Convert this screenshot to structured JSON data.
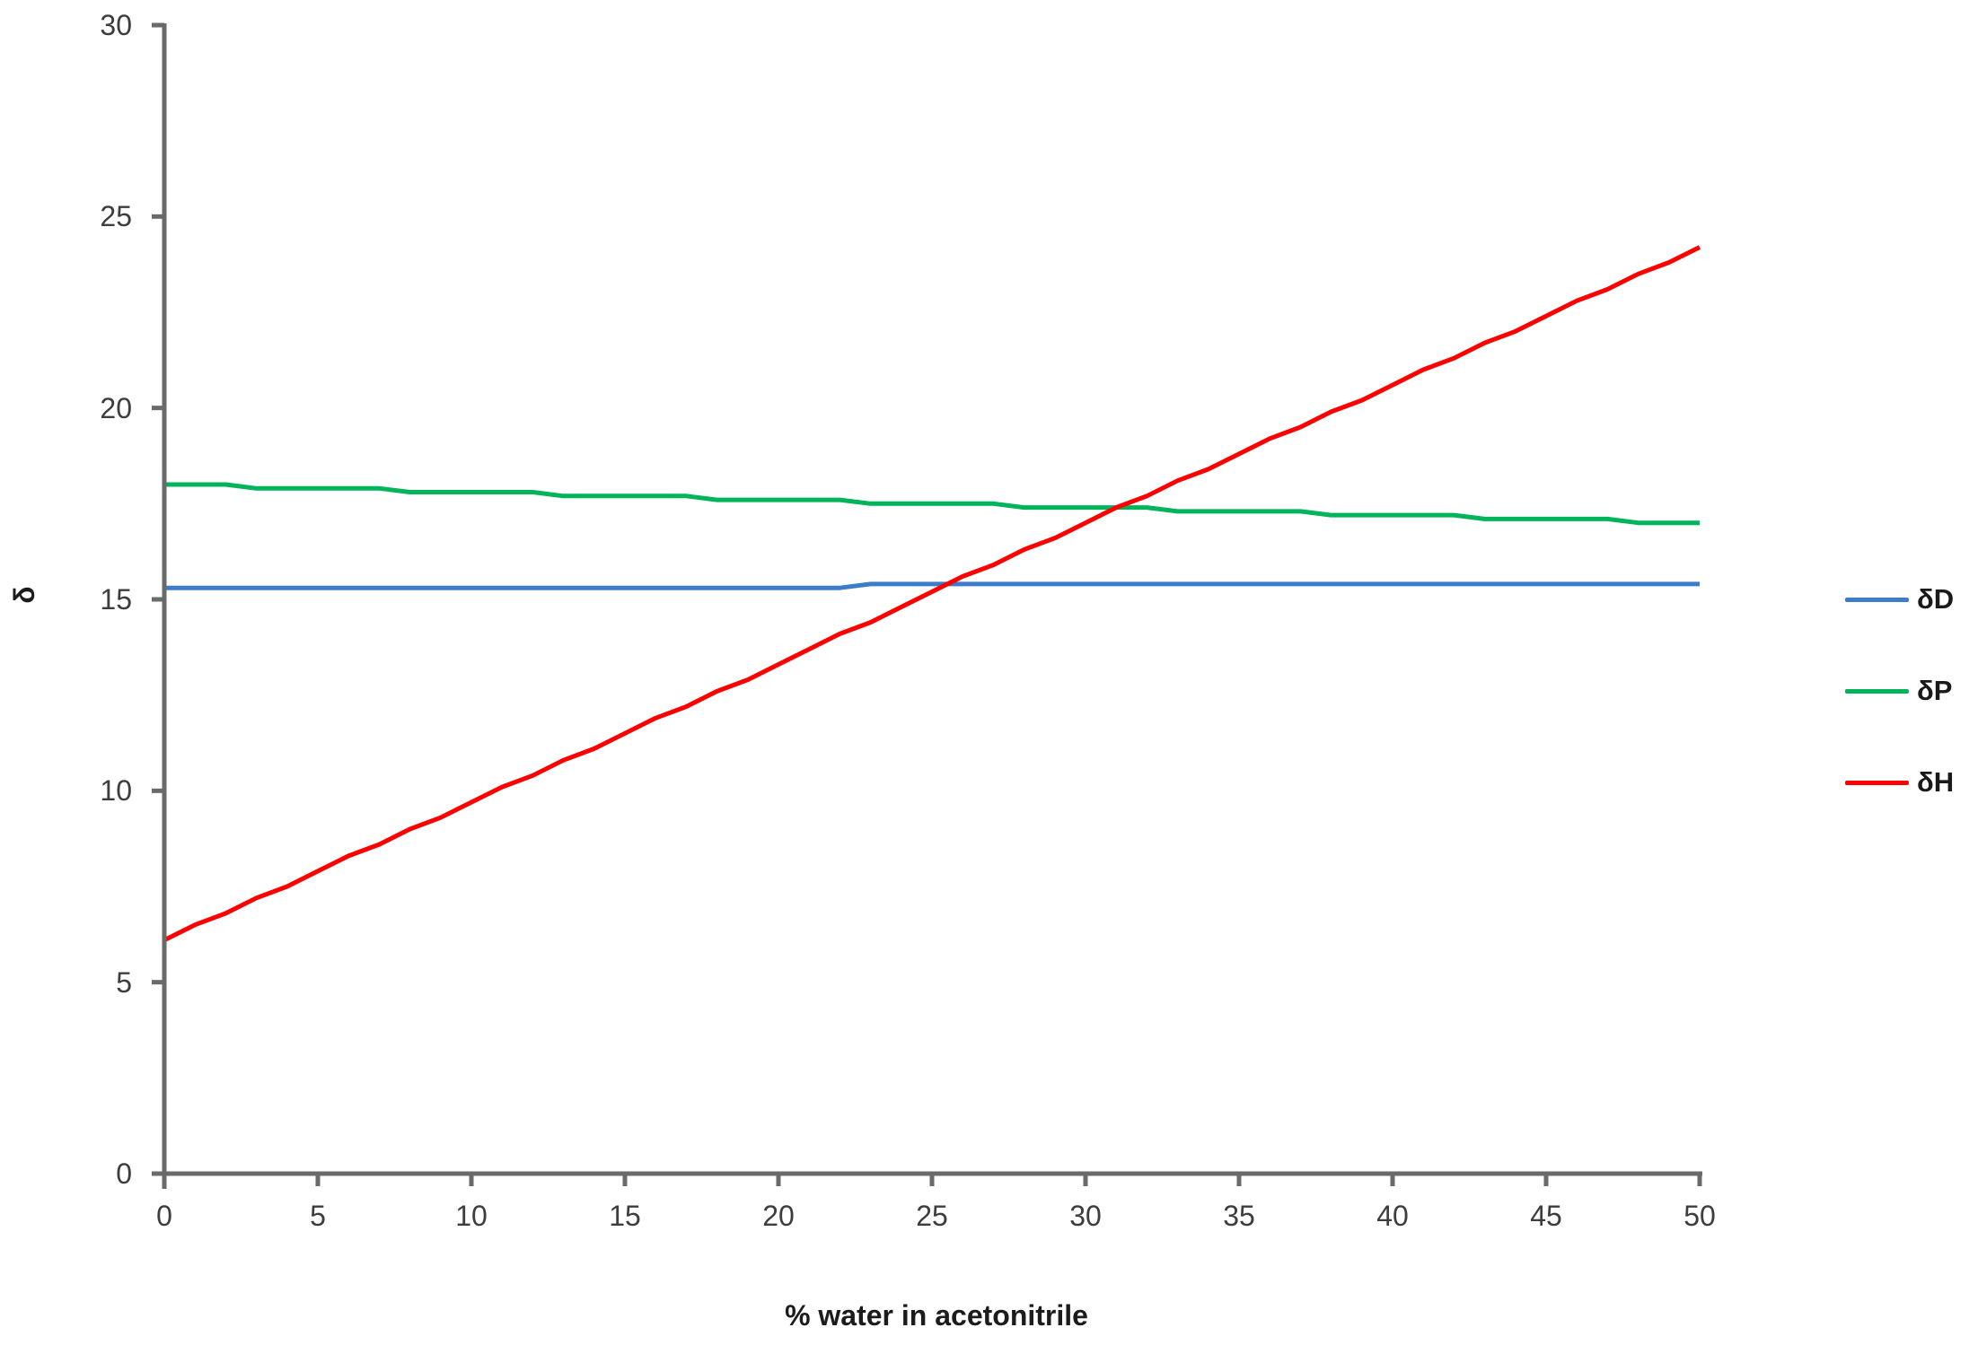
{
  "chart_data": {
    "type": "line",
    "title": "",
    "xlabel": "% water in acetonitrile",
    "ylabel": "δ",
    "xlim": [
      0,
      50
    ],
    "ylim": [
      0,
      30
    ],
    "grid": false,
    "legend_position": "right-outside",
    "x_ticks": [
      0,
      5,
      10,
      15,
      20,
      25,
      30,
      35,
      40,
      45,
      50
    ],
    "y_ticks": [
      0,
      5,
      10,
      15,
      20,
      25,
      30
    ],
    "x": [
      0,
      5,
      10,
      15,
      20,
      25,
      30,
      35,
      40,
      45,
      50
    ],
    "series": [
      {
        "name": "δD",
        "color": "#3d7cc8",
        "values": [
          15.3,
          15.3,
          15.3,
          15.3,
          15.3,
          15.4,
          15.4,
          15.4,
          15.4,
          15.4,
          15.4
        ]
      },
      {
        "name": "δP",
        "color": "#00b45a",
        "values": [
          18.0,
          17.9,
          17.8,
          17.7,
          17.6,
          17.5,
          17.4,
          17.3,
          17.2,
          17.1,
          17.0
        ]
      },
      {
        "name": "δH",
        "color": "#ff0000",
        "values": [
          6.1,
          7.9,
          9.7,
          11.5,
          13.3,
          15.2,
          17.0,
          18.8,
          20.6,
          22.4,
          24.2
        ]
      }
    ],
    "axis_color": "#6a6a6a",
    "tick_text_color": "#3d3d3d"
  }
}
